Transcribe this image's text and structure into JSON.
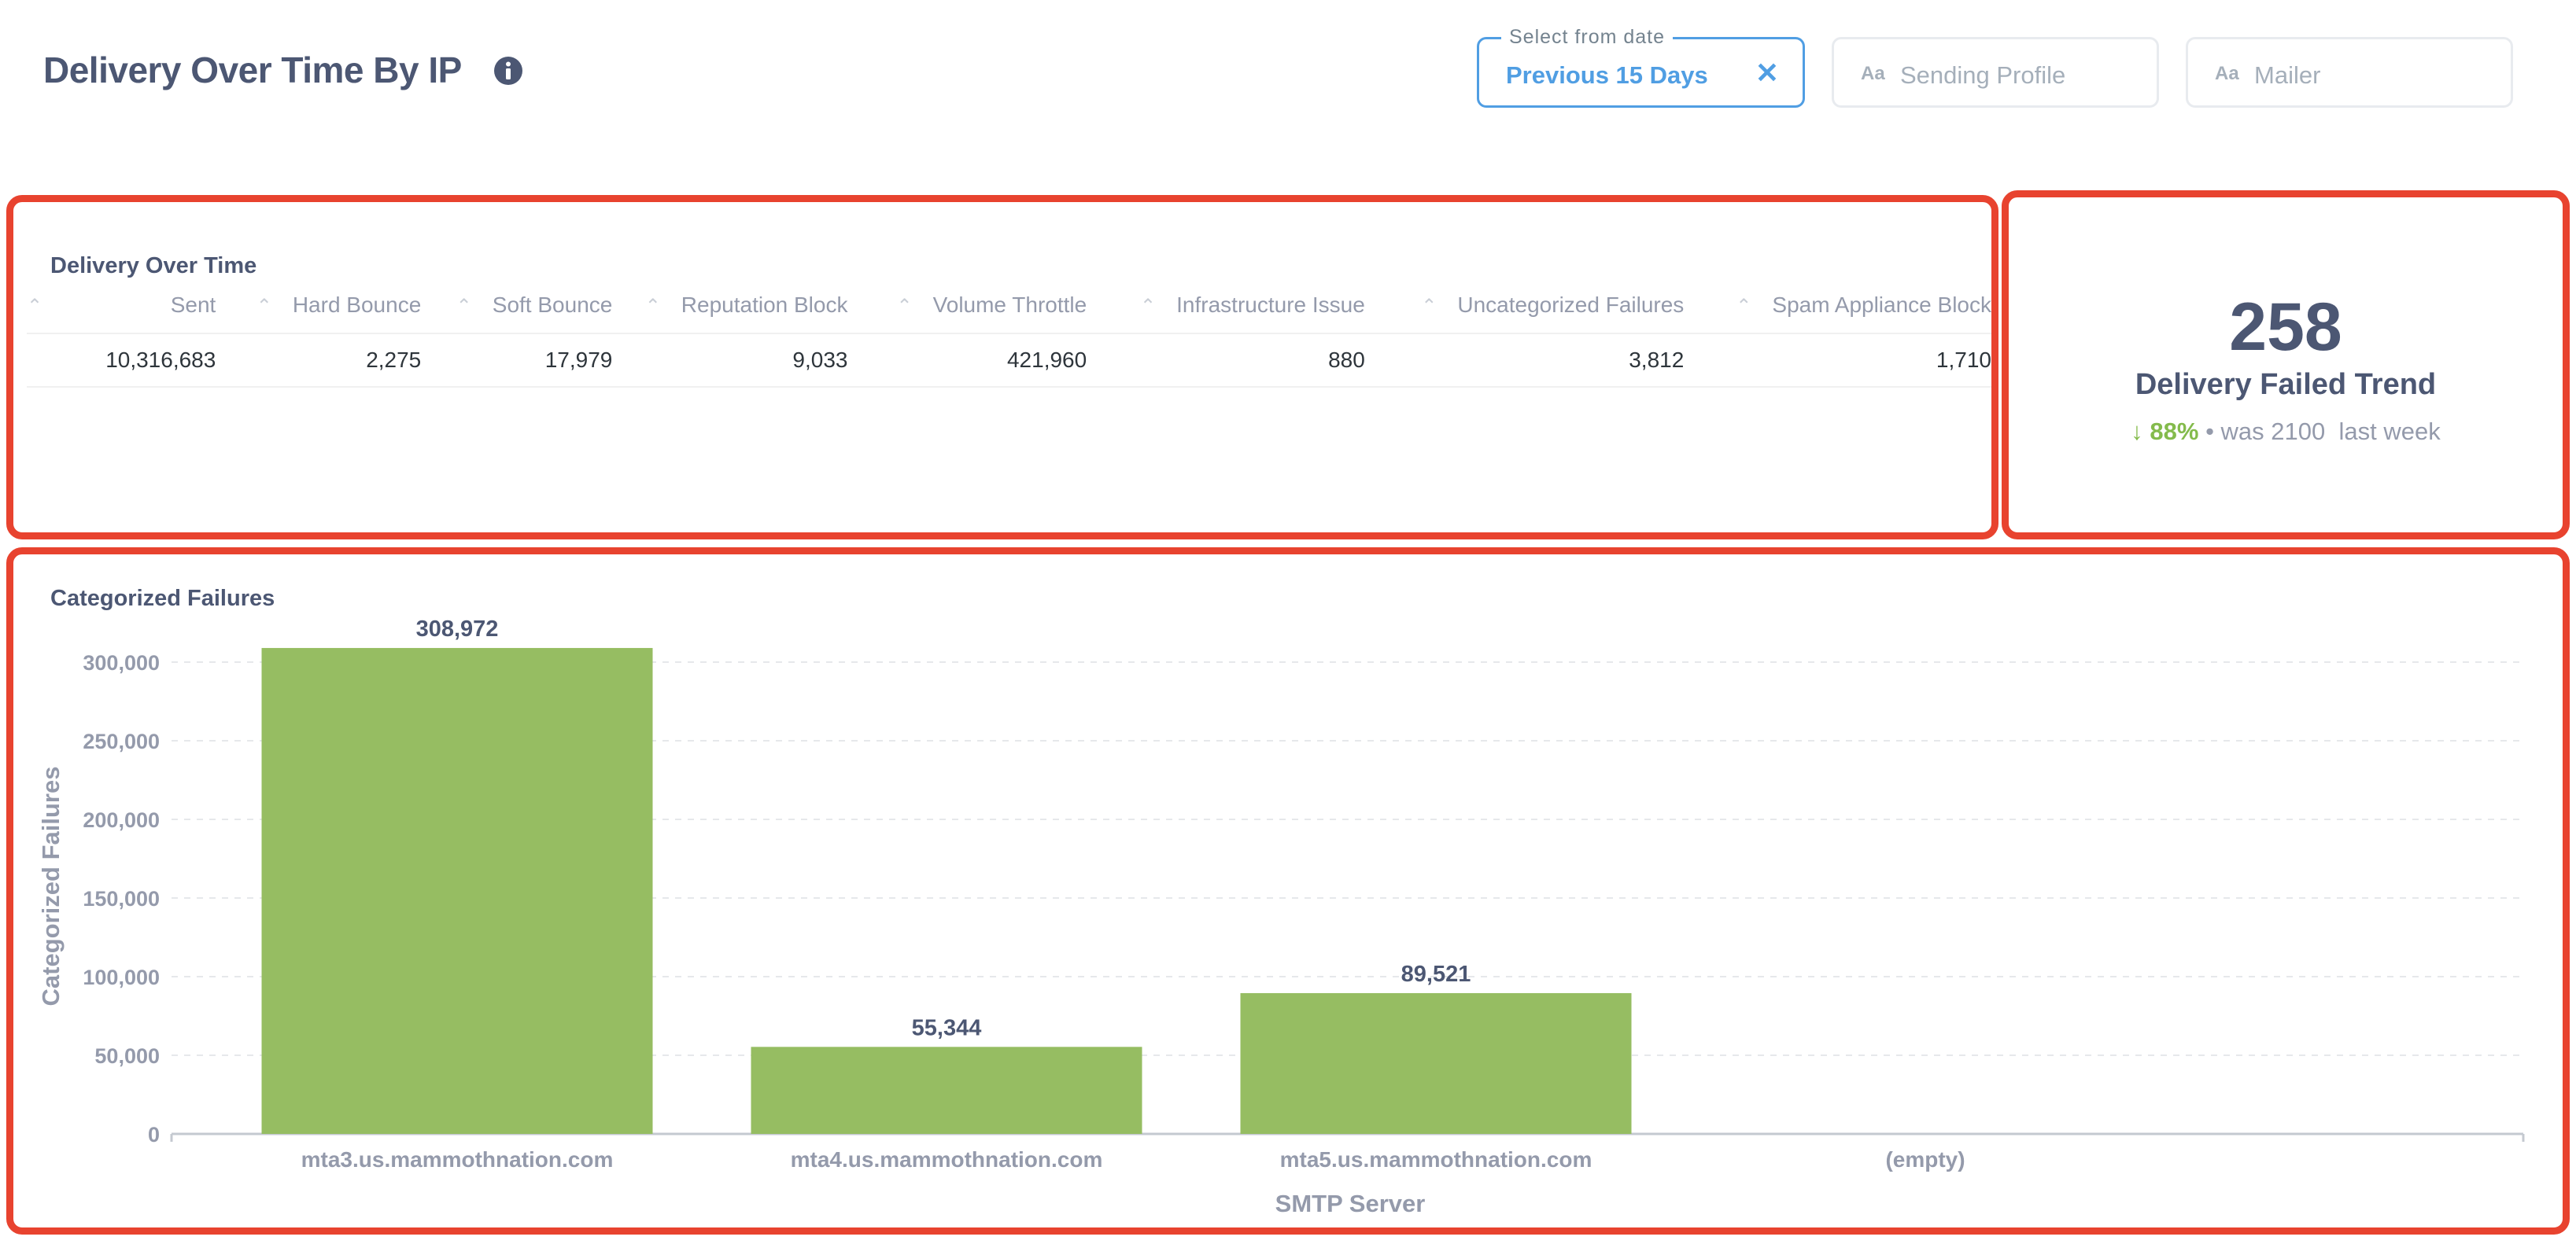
{
  "header": {
    "title": "Delivery Over Time By IP",
    "filters": {
      "date": {
        "legend": "Select from date",
        "value": "Previous 15 Days"
      },
      "sending_profile": {
        "label": "Sending Profile"
      },
      "mailer": {
        "label": "Mailer"
      }
    },
    "icons": {
      "info": "info-icon",
      "clear": "close-icon",
      "text_filter": "Aa"
    }
  },
  "table_card": {
    "title": "Delivery Over Time",
    "columns": [
      "Sent",
      "Hard Bounce",
      "Soft Bounce",
      "Reputation Block",
      "Volume Throttle",
      "Infrastructure Issue",
      "Uncategorized Failures",
      "Spam Appliance Block"
    ],
    "row": [
      "10,316,683",
      "2,275",
      "17,979",
      "9,033",
      "421,960",
      "880",
      "3,812",
      "1,710"
    ]
  },
  "trend_card": {
    "value": "258",
    "label": "Delivery Failed Trend",
    "change_pct": "88%",
    "previous": "• was 2100  last week",
    "direction": "down"
  },
  "chart_card": {
    "title": "Categorized Failures",
    "chart_data": {
      "type": "bar",
      "categories": [
        "mta3.us.mammothnation.com",
        "mta4.us.mammothnation.com",
        "mta5.us.mammothnation.com",
        "(empty)"
      ],
      "values": [
        308972,
        55344,
        89521,
        null
      ],
      "value_labels": [
        "308,972",
        "55,344",
        "89,521",
        ""
      ],
      "xlabel": "SMTP Server",
      "ylabel": "Categorized Failures",
      "ylim": [
        0,
        310000
      ],
      "yticks": [
        0,
        50000,
        100000,
        150000,
        200000,
        250000,
        300000
      ],
      "ytick_labels": [
        "0",
        "50,000",
        "100,000",
        "150,000",
        "200,000",
        "250,000",
        "300,000"
      ],
      "grid": true,
      "bar_color": "#96bd62"
    }
  },
  "colors": {
    "accent": "#509ee3",
    "highlight_border": "#e8432f",
    "positive": "#84bb4c",
    "text": "#4c5773"
  }
}
